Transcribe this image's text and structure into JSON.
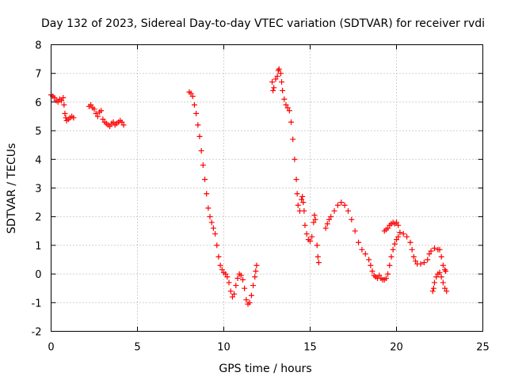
{
  "chart_data": {
    "type": "scatter",
    "title": "Day 132 of 2023, Sidereal Day-to-day VTEC variation (SDTVAR) for receiver rvdi",
    "xlabel": "GPS time / hours",
    "ylabel": "SDTVAR / TECUs",
    "xlim": [
      0,
      25
    ],
    "ylim": [
      -2,
      8
    ],
    "x_ticks": [
      "0",
      "5",
      "10",
      "15",
      "20",
      "25"
    ],
    "y_ticks": [
      "-2",
      "-1",
      "0",
      "1",
      "2",
      "3",
      "4",
      "5",
      "6",
      "7",
      "8"
    ],
    "grid": true,
    "marker": "+",
    "series_color": "#ff0000",
    "series": [
      {
        "name": "SDTVAR",
        "points": [
          [
            0.0,
            6.25
          ],
          [
            0.1,
            6.2
          ],
          [
            0.2,
            6.15
          ],
          [
            0.3,
            6.05
          ],
          [
            0.4,
            6.0
          ],
          [
            0.5,
            6.1
          ],
          [
            0.6,
            6.05
          ],
          [
            0.7,
            6.15
          ],
          [
            0.75,
            5.9
          ],
          [
            0.8,
            5.6
          ],
          [
            0.85,
            5.45
          ],
          [
            0.9,
            5.35
          ],
          [
            1.0,
            5.4
          ],
          [
            1.1,
            5.45
          ],
          [
            1.2,
            5.5
          ],
          [
            1.3,
            5.45
          ],
          [
            2.2,
            5.85
          ],
          [
            2.3,
            5.9
          ],
          [
            2.4,
            5.8
          ],
          [
            2.5,
            5.75
          ],
          [
            2.6,
            5.6
          ],
          [
            2.7,
            5.5
          ],
          [
            2.8,
            5.65
          ],
          [
            2.9,
            5.7
          ],
          [
            3.0,
            5.4
          ],
          [
            3.1,
            5.3
          ],
          [
            3.2,
            5.25
          ],
          [
            3.3,
            5.2
          ],
          [
            3.4,
            5.15
          ],
          [
            3.5,
            5.25
          ],
          [
            3.6,
            5.3
          ],
          [
            3.7,
            5.2
          ],
          [
            3.8,
            5.25
          ],
          [
            3.9,
            5.3
          ],
          [
            4.0,
            5.35
          ],
          [
            4.1,
            5.3
          ],
          [
            4.2,
            5.2
          ],
          [
            8.0,
            6.35
          ],
          [
            8.1,
            6.3
          ],
          [
            8.2,
            6.2
          ],
          [
            8.3,
            5.9
          ],
          [
            8.4,
            5.6
          ],
          [
            8.5,
            5.2
          ],
          [
            8.6,
            4.8
          ],
          [
            8.7,
            4.3
          ],
          [
            8.8,
            3.8
          ],
          [
            8.9,
            3.3
          ],
          [
            9.0,
            2.8
          ],
          [
            9.1,
            2.3
          ],
          [
            9.2,
            2.0
          ],
          [
            9.3,
            1.8
          ],
          [
            9.4,
            1.6
          ],
          [
            9.5,
            1.4
          ],
          [
            9.6,
            1.0
          ],
          [
            9.7,
            0.6
          ],
          [
            9.8,
            0.3
          ],
          [
            9.9,
            0.15
          ],
          [
            10.0,
            0.05
          ],
          [
            10.1,
            0.0
          ],
          [
            10.2,
            -0.1
          ],
          [
            10.3,
            -0.3
          ],
          [
            10.4,
            -0.6
          ],
          [
            10.5,
            -0.8
          ],
          [
            10.6,
            -0.7
          ],
          [
            10.7,
            -0.4
          ],
          [
            10.8,
            -0.15
          ],
          [
            10.9,
            0.0
          ],
          [
            11.0,
            -0.05
          ],
          [
            11.1,
            -0.2
          ],
          [
            11.2,
            -0.5
          ],
          [
            11.3,
            -0.9
          ],
          [
            11.4,
            -1.05
          ],
          [
            11.5,
            -1.0
          ],
          [
            11.6,
            -0.75
          ],
          [
            11.7,
            -0.4
          ],
          [
            11.8,
            -0.1
          ],
          [
            11.85,
            0.1
          ],
          [
            11.9,
            0.3
          ],
          [
            12.8,
            6.7
          ],
          [
            12.85,
            6.4
          ],
          [
            12.9,
            6.5
          ],
          [
            13.0,
            6.8
          ],
          [
            13.1,
            6.9
          ],
          [
            13.15,
            7.1
          ],
          [
            13.2,
            7.15
          ],
          [
            13.3,
            7.0
          ],
          [
            13.35,
            6.7
          ],
          [
            13.4,
            6.4
          ],
          [
            13.5,
            6.1
          ],
          [
            13.6,
            5.9
          ],
          [
            13.7,
            5.8
          ],
          [
            13.8,
            5.7
          ],
          [
            13.9,
            5.3
          ],
          [
            14.0,
            4.7
          ],
          [
            14.1,
            4.0
          ],
          [
            14.2,
            3.3
          ],
          [
            14.25,
            2.8
          ],
          [
            14.3,
            2.4
          ],
          [
            14.4,
            2.2
          ],
          [
            14.5,
            2.6
          ],
          [
            14.55,
            2.7
          ],
          [
            14.6,
            2.5
          ],
          [
            14.65,
            2.2
          ],
          [
            14.7,
            1.7
          ],
          [
            14.8,
            1.4
          ],
          [
            14.9,
            1.2
          ],
          [
            15.0,
            1.15
          ],
          [
            15.1,
            1.3
          ],
          [
            15.2,
            1.8
          ],
          [
            15.25,
            2.05
          ],
          [
            15.3,
            1.9
          ],
          [
            15.4,
            1.0
          ],
          [
            15.45,
            0.6
          ],
          [
            15.5,
            0.4
          ],
          [
            15.9,
            1.6
          ],
          [
            16.0,
            1.75
          ],
          [
            16.1,
            1.9
          ],
          [
            16.2,
            2.0
          ],
          [
            16.4,
            2.2
          ],
          [
            16.6,
            2.4
          ],
          [
            16.8,
            2.5
          ],
          [
            17.0,
            2.4
          ],
          [
            17.2,
            2.2
          ],
          [
            17.4,
            1.9
          ],
          [
            17.6,
            1.5
          ],
          [
            17.8,
            1.1
          ],
          [
            18.0,
            0.85
          ],
          [
            18.2,
            0.7
          ],
          [
            18.4,
            0.5
          ],
          [
            18.5,
            0.3
          ],
          [
            18.6,
            0.1
          ],
          [
            18.7,
            -0.05
          ],
          [
            18.8,
            -0.1
          ],
          [
            18.9,
            -0.15
          ],
          [
            19.0,
            -0.05
          ],
          [
            19.1,
            -0.15
          ],
          [
            19.2,
            -0.2
          ],
          [
            19.3,
            -0.2
          ],
          [
            19.4,
            -0.15
          ],
          [
            19.5,
            0.0
          ],
          [
            19.6,
            0.3
          ],
          [
            19.7,
            0.6
          ],
          [
            19.8,
            0.85
          ],
          [
            19.9,
            1.05
          ],
          [
            20.0,
            1.2
          ],
          [
            20.1,
            1.3
          ],
          [
            20.2,
            1.45
          ],
          [
            20.4,
            1.4
          ],
          [
            20.6,
            1.3
          ],
          [
            20.8,
            1.1
          ],
          [
            20.9,
            0.85
          ],
          [
            21.0,
            0.6
          ],
          [
            21.1,
            0.45
          ],
          [
            21.2,
            0.35
          ],
          [
            21.4,
            0.35
          ],
          [
            21.6,
            0.4
          ],
          [
            21.8,
            0.5
          ],
          [
            21.9,
            0.7
          ],
          [
            22.0,
            0.8
          ],
          [
            22.2,
            0.9
          ],
          [
            22.4,
            0.85
          ],
          [
            22.5,
            0.85
          ],
          [
            22.6,
            0.6
          ],
          [
            22.7,
            0.3
          ],
          [
            22.8,
            0.15
          ],
          [
            22.85,
            0.1
          ],
          [
            19.3,
            1.5
          ],
          [
            19.4,
            1.55
          ],
          [
            19.5,
            1.6
          ],
          [
            19.6,
            1.7
          ],
          [
            19.7,
            1.75
          ],
          [
            19.8,
            1.8
          ],
          [
            19.9,
            1.75
          ],
          [
            20.0,
            1.8
          ],
          [
            20.1,
            1.7
          ],
          [
            22.1,
            -0.6
          ],
          [
            22.15,
            -0.5
          ],
          [
            22.2,
            -0.3
          ],
          [
            22.3,
            -0.1
          ],
          [
            22.4,
            0.0
          ],
          [
            22.5,
            0.05
          ],
          [
            22.6,
            -0.1
          ],
          [
            22.7,
            -0.3
          ],
          [
            22.8,
            -0.5
          ],
          [
            22.9,
            -0.6
          ]
        ]
      }
    ]
  }
}
